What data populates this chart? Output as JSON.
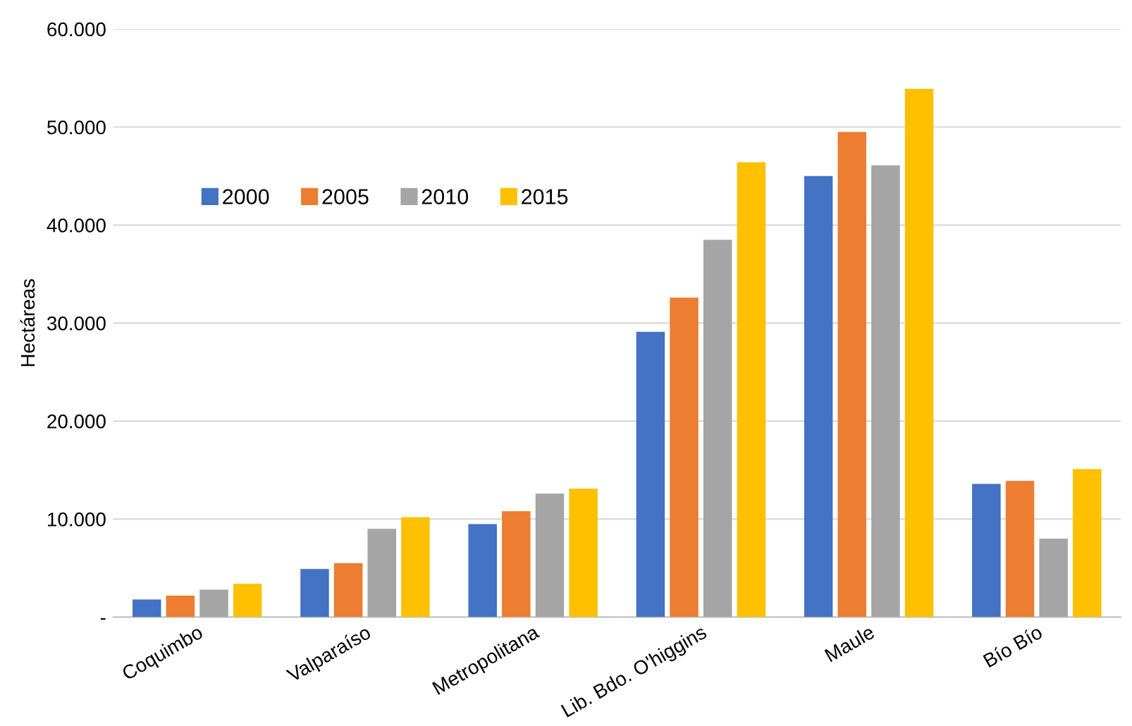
{
  "chart_data": {
    "type": "bar",
    "ylabel": "Hectáreas",
    "categories": [
      "Coquimbo",
      "Valparaíso",
      "Metropolitana",
      "Lib. Bdo. O'higgins",
      "Maule",
      "Bío Bío"
    ],
    "series": [
      {
        "name": "2000",
        "color": "#4472c4",
        "values": [
          1800,
          4900,
          9500,
          29100,
          45000,
          13600
        ]
      },
      {
        "name": "2005",
        "color": "#ed7d31",
        "values": [
          2200,
          5500,
          10800,
          32600,
          49500,
          13900
        ]
      },
      {
        "name": "2010",
        "color": "#a5a5a5",
        "values": [
          2800,
          9000,
          12600,
          38500,
          46100,
          8000
        ]
      },
      {
        "name": "2015",
        "color": "#ffc000",
        "values": [
          3400,
          10200,
          13100,
          46400,
          53900,
          15100
        ]
      }
    ],
    "ylim": [
      0,
      60000
    ],
    "yticks": [
      {
        "value": 0,
        "label": "-"
      },
      {
        "value": 10000,
        "label": "10.000"
      },
      {
        "value": 20000,
        "label": "20.000"
      },
      {
        "value": 30000,
        "label": "30.000"
      },
      {
        "value": 40000,
        "label": "40.000"
      },
      {
        "value": 50000,
        "label": "50.000"
      },
      {
        "value": 60000,
        "label": "60.000"
      }
    ],
    "grid": "y",
    "legend": "top left"
  }
}
